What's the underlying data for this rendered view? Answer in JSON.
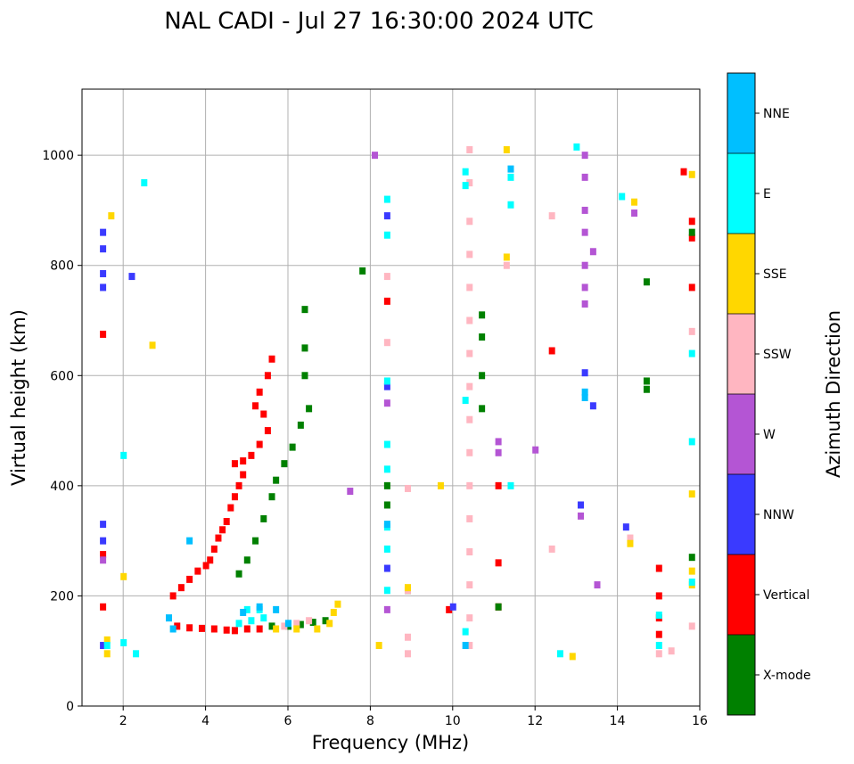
{
  "chart_data": {
    "type": "scatter",
    "title": "NAL CADI - Jul 27 16:30:00 2024 UTC",
    "xlabel": "Frequency (MHz)",
    "ylabel": "Virtual height (km)",
    "xlim": [
      1,
      16
    ],
    "ylim": [
      0,
      1120
    ],
    "xticks": [
      2,
      4,
      6,
      8,
      10,
      12,
      14,
      16
    ],
    "yticks": [
      0,
      200,
      400,
      600,
      800,
      1000
    ],
    "grid": true,
    "colorbar": {
      "label": "Azimuth Direction",
      "categories": [
        {
          "name": "X-mode",
          "color": "#008000"
        },
        {
          "name": "Vertical",
          "color": "#ff0000"
        },
        {
          "name": "NNW",
          "color": "#3a3aff"
        },
        {
          "name": "W",
          "color": "#b455d4"
        },
        {
          "name": "SSW",
          "color": "#ffb6c1"
        },
        {
          "name": "SSE",
          "color": "#ffd700"
        },
        {
          "name": "E",
          "color": "#00ffff"
        },
        {
          "name": "NNE",
          "color": "#00bfff"
        }
      ]
    },
    "series": [
      {
        "name": "Vertical",
        "points": [
          [
            3.3,
            145
          ],
          [
            3.6,
            142
          ],
          [
            3.9,
            141
          ],
          [
            4.2,
            140
          ],
          [
            4.5,
            138
          ],
          [
            4.7,
            137
          ],
          [
            5.0,
            140
          ],
          [
            5.3,
            140
          ],
          [
            3.2,
            200
          ],
          [
            3.4,
            215
          ],
          [
            3.6,
            230
          ],
          [
            3.8,
            245
          ],
          [
            4.0,
            255
          ],
          [
            4.1,
            265
          ],
          [
            4.2,
            285
          ],
          [
            4.3,
            305
          ],
          [
            4.4,
            320
          ],
          [
            4.5,
            335
          ],
          [
            4.6,
            360
          ],
          [
            4.7,
            380
          ],
          [
            4.8,
            400
          ],
          [
            4.9,
            420
          ],
          [
            4.7,
            440
          ],
          [
            4.9,
            445
          ],
          [
            5.1,
            455
          ],
          [
            5.3,
            475
          ],
          [
            5.5,
            500
          ],
          [
            5.4,
            530
          ],
          [
            5.2,
            545
          ],
          [
            5.3,
            570
          ],
          [
            5.5,
            600
          ],
          [
            5.6,
            630
          ],
          [
            11.1,
            400
          ],
          [
            11.1,
            260
          ],
          [
            11.1,
            180
          ],
          [
            15.0,
            250
          ],
          [
            15.0,
            200
          ],
          [
            15.0,
            160
          ],
          [
            15.0,
            130
          ],
          [
            15.6,
            970
          ],
          [
            15.8,
            880
          ],
          [
            15.8,
            850
          ],
          [
            15.8,
            760
          ],
          [
            1.5,
            275
          ],
          [
            1.5,
            675
          ],
          [
            1.5,
            180
          ],
          [
            12.4,
            645
          ],
          [
            9.9,
            175
          ],
          [
            8.4,
            735
          ]
        ]
      },
      {
        "name": "X-mode",
        "points": [
          [
            5.6,
            145
          ],
          [
            6.0,
            145
          ],
          [
            6.3,
            148
          ],
          [
            6.6,
            152
          ],
          [
            6.9,
            155
          ],
          [
            4.8,
            240
          ],
          [
            5.0,
            265
          ],
          [
            5.2,
            300
          ],
          [
            5.4,
            340
          ],
          [
            5.6,
            380
          ],
          [
            5.7,
            410
          ],
          [
            5.9,
            440
          ],
          [
            6.1,
            470
          ],
          [
            6.3,
            510
          ],
          [
            6.5,
            540
          ],
          [
            6.4,
            600
          ],
          [
            6.4,
            650
          ],
          [
            6.4,
            720
          ],
          [
            10.7,
            540
          ],
          [
            10.7,
            600
          ],
          [
            10.7,
            670
          ],
          [
            10.7,
            710
          ],
          [
            14.7,
            770
          ],
          [
            14.7,
            590
          ],
          [
            14.7,
            575
          ],
          [
            15.8,
            860
          ],
          [
            15.8,
            270
          ],
          [
            8.9,
            210
          ],
          [
            11.1,
            180
          ],
          [
            7.8,
            790
          ],
          [
            8.4,
            400
          ],
          [
            8.4,
            365
          ]
        ]
      },
      {
        "name": "NNW",
        "points": [
          [
            1.5,
            300
          ],
          [
            1.5,
            330
          ],
          [
            1.5,
            760
          ],
          [
            1.5,
            785
          ],
          [
            1.5,
            830
          ],
          [
            1.5,
            860
          ],
          [
            1.5,
            110
          ],
          [
            8.4,
            890
          ],
          [
            8.4,
            250
          ],
          [
            8.4,
            580
          ],
          [
            13.2,
            605
          ],
          [
            13.4,
            545
          ],
          [
            13.1,
            365
          ],
          [
            14.2,
            325
          ],
          [
            10.0,
            180
          ],
          [
            2.2,
            780
          ]
        ]
      },
      {
        "name": "W",
        "points": [
          [
            13.2,
            1000
          ],
          [
            13.2,
            960
          ],
          [
            13.2,
            900
          ],
          [
            13.2,
            860
          ],
          [
            13.2,
            800
          ],
          [
            13.2,
            760
          ],
          [
            13.2,
            730
          ],
          [
            13.4,
            825
          ],
          [
            13.1,
            345
          ],
          [
            13.5,
            220
          ],
          [
            14.4,
            895
          ],
          [
            8.1,
            1000
          ],
          [
            11.1,
            480
          ],
          [
            11.1,
            460
          ],
          [
            12.0,
            465
          ],
          [
            7.5,
            390
          ],
          [
            8.4,
            550
          ],
          [
            8.4,
            175
          ],
          [
            1.5,
            265
          ]
        ]
      },
      {
        "name": "SSW",
        "points": [
          [
            5.9,
            145
          ],
          [
            6.2,
            150
          ],
          [
            6.5,
            155
          ],
          [
            10.4,
            1010
          ],
          [
            10.4,
            950
          ],
          [
            10.4,
            880
          ],
          [
            10.4,
            820
          ],
          [
            10.4,
            760
          ],
          [
            10.4,
            700
          ],
          [
            10.4,
            640
          ],
          [
            10.4,
            580
          ],
          [
            10.4,
            520
          ],
          [
            10.4,
            460
          ],
          [
            10.4,
            400
          ],
          [
            10.4,
            340
          ],
          [
            10.4,
            280
          ],
          [
            10.4,
            220
          ],
          [
            10.4,
            160
          ],
          [
            10.4,
            110
          ],
          [
            8.4,
            780
          ],
          [
            8.4,
            660
          ],
          [
            8.9,
            395
          ],
          [
            8.9,
            210
          ],
          [
            8.9,
            125
          ],
          [
            8.9,
            95
          ],
          [
            11.3,
            800
          ],
          [
            12.4,
            890
          ],
          [
            12.4,
            285
          ],
          [
            15.3,
            100
          ],
          [
            15.8,
            680
          ],
          [
            15.8,
            145
          ],
          [
            15.0,
            95
          ],
          [
            14.3,
            305
          ]
        ]
      },
      {
        "name": "SSE",
        "points": [
          [
            5.7,
            140
          ],
          [
            6.2,
            140
          ],
          [
            6.7,
            140
          ],
          [
            7.0,
            150
          ],
          [
            7.1,
            170
          ],
          [
            7.2,
            185
          ],
          [
            1.6,
            95
          ],
          [
            1.6,
            120
          ],
          [
            2.0,
            235
          ],
          [
            8.2,
            110
          ],
          [
            8.9,
            215
          ],
          [
            12.9,
            90
          ],
          [
            14.3,
            295
          ],
          [
            14.4,
            915
          ],
          [
            15.8,
            385
          ],
          [
            15.8,
            245
          ],
          [
            15.8,
            220
          ],
          [
            15.8,
            965
          ],
          [
            11.3,
            1010
          ],
          [
            11.3,
            815
          ],
          [
            2.7,
            655
          ],
          [
            1.7,
            890
          ],
          [
            9.7,
            400
          ]
        ]
      },
      {
        "name": "E",
        "points": [
          [
            4.8,
            150
          ],
          [
            5.1,
            155
          ],
          [
            5.4,
            160
          ],
          [
            5.0,
            175
          ],
          [
            5.3,
            175
          ],
          [
            2.3,
            95
          ],
          [
            2.0,
            115
          ],
          [
            1.6,
            110
          ],
          [
            8.4,
            920
          ],
          [
            8.4,
            855
          ],
          [
            8.4,
            590
          ],
          [
            8.4,
            475
          ],
          [
            8.4,
            430
          ],
          [
            8.4,
            325
          ],
          [
            8.4,
            285
          ],
          [
            8.4,
            210
          ],
          [
            10.3,
            970
          ],
          [
            10.3,
            945
          ],
          [
            10.3,
            555
          ],
          [
            10.3,
            135
          ],
          [
            11.4,
            960
          ],
          [
            11.4,
            910
          ],
          [
            11.4,
            400
          ],
          [
            13.0,
            1015
          ],
          [
            14.1,
            925
          ],
          [
            15.0,
            165
          ],
          [
            15.0,
            110
          ],
          [
            15.8,
            640
          ],
          [
            15.8,
            480
          ],
          [
            15.8,
            225
          ],
          [
            12.6,
            95
          ],
          [
            2.0,
            455
          ],
          [
            2.5,
            950
          ]
        ]
      },
      {
        "name": "NNE",
        "points": [
          [
            4.9,
            170
          ],
          [
            5.3,
            180
          ],
          [
            5.7,
            175
          ],
          [
            3.6,
            300
          ],
          [
            6.0,
            150
          ],
          [
            3.1,
            160
          ],
          [
            3.2,
            140
          ],
          [
            10.3,
            110
          ],
          [
            11.4,
            975
          ],
          [
            13.2,
            570
          ],
          [
            13.2,
            560
          ],
          [
            8.4,
            330
          ]
        ]
      }
    ]
  }
}
